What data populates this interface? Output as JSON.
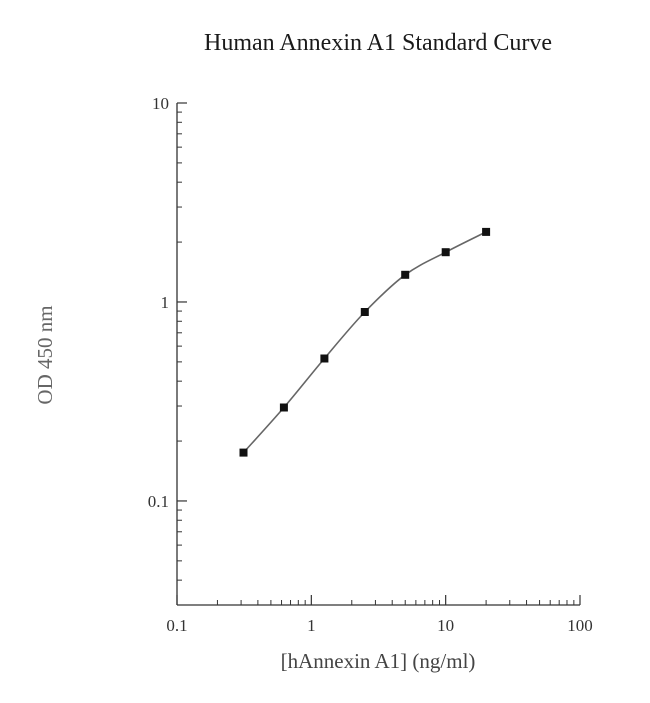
{
  "chart_data": {
    "type": "scatter",
    "title": "Human Annexin A1 Standard Curve",
    "xlabel": "[hAnnexin A1] (ng/ml)",
    "ylabel": "OD 450 nm",
    "xscale": "log",
    "yscale": "log",
    "xlim": [
      0.1,
      100
    ],
    "ylim": [
      0.03,
      10
    ],
    "x_ticks": [
      {
        "value": 0.1,
        "label": "0.1"
      },
      {
        "value": 1,
        "label": "1"
      },
      {
        "value": 10,
        "label": "10"
      },
      {
        "value": 100,
        "label": "100"
      }
    ],
    "y_ticks": [
      {
        "value": 0.1,
        "label": "0.1"
      },
      {
        "value": 1,
        "label": "1"
      },
      {
        "value": 10,
        "label": "10"
      }
    ],
    "grid": false,
    "legend": "none",
    "fit_curve": true,
    "series": [
      {
        "x": [
          0.3125,
          0.625,
          1.25,
          2.5,
          5,
          10,
          20
        ],
        "y": [
          0.175,
          0.295,
          0.52,
          0.89,
          1.37,
          1.78,
          2.25
        ]
      }
    ],
    "colors": {
      "points": "#111111",
      "curve": "#666666",
      "axis": "#333333"
    }
  }
}
